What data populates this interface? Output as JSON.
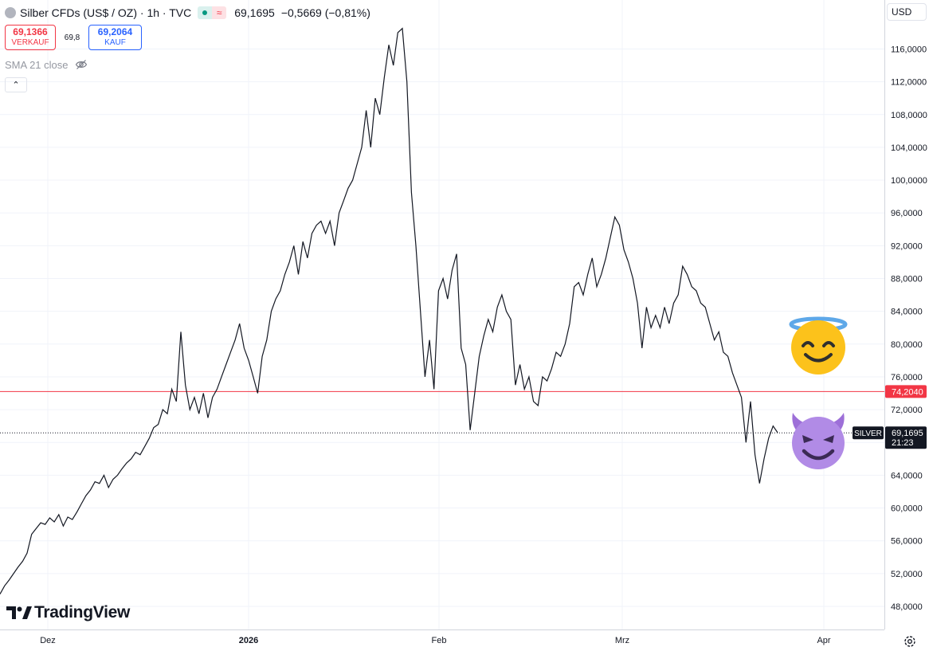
{
  "header": {
    "title": "Silber CFDs (US$ / OZ) · 1h · TVC",
    "status_icon_wave": "≈",
    "last_price": "69,1695",
    "change": "−0,5669 (−0,81%)",
    "sell_value": "69,1366",
    "sell_label": "VERKAUF",
    "spread": "69,8",
    "buy_value": "69,2064",
    "buy_label": "KAUF",
    "indicator": "SMA 21 close",
    "collapse_glyph": "⌃"
  },
  "currency": "USD",
  "branding": {
    "name": "TradingView"
  },
  "emojis": {
    "angel": "smiling-face-with-halo-icon",
    "devil": "smiling-face-with-horns-icon"
  },
  "colors": {
    "line": "#131722",
    "grid": "#f0f3fa",
    "hline": "#f23645",
    "angel_face": "#fcc21b",
    "devil_face": "#b18be6"
  },
  "chart_data": {
    "type": "line",
    "title": "",
    "xlabel": "",
    "ylabel": "",
    "x_ticks": [
      "Dez",
      "2026",
      "Feb",
      "Mrz",
      "Apr"
    ],
    "y_ticks": [
      "48,0000",
      "52,0000",
      "56,0000",
      "60,0000",
      "64,0000",
      "68,0000",
      "72,0000",
      "76,0000",
      "80,0000",
      "84,0000",
      "88,0000",
      "92,0000",
      "96,0000",
      "100,0000",
      "104,0000",
      "108,0000",
      "112,0000",
      "116,0000"
    ],
    "ylim": [
      46.5,
      120.5
    ],
    "horizontal_line": {
      "value": 74.204,
      "label": "74,2040"
    },
    "last_price_marker": {
      "value": 69.1695,
      "label": "69,1695",
      "symbol": "SILVER",
      "countdown": "21:23"
    },
    "series": [
      {
        "values": [
          49.5,
          50.5,
          51.2,
          52.0,
          52.8,
          53.5,
          54.5,
          56.8,
          57.5,
          58.2,
          58.0,
          58.8,
          58.3,
          59.2,
          57.8,
          58.9,
          58.6,
          59.5,
          60.5,
          61.5,
          62.2,
          63.2,
          63.0,
          64.0,
          62.5,
          63.5,
          64.0,
          64.8,
          65.5,
          66.0,
          66.8,
          66.5,
          67.5,
          68.5,
          69.8,
          70.2,
          72.0,
          71.5,
          74.5,
          73.0,
          81.5,
          75.0,
          72.0,
          73.5,
          71.5,
          74.0,
          71.0,
          73.5,
          74.5,
          76.0,
          77.5,
          79.0,
          80.5,
          82.5,
          79.5,
          78.0,
          76.0,
          74.0,
          78.5,
          80.5,
          84.0,
          85.5,
          86.5,
          88.5,
          90.0,
          92.0,
          88.5,
          92.5,
          90.5,
          93.5,
          94.5,
          95.0,
          93.5,
          95.0,
          92.0,
          96.0,
          97.5,
          99.0,
          100.0,
          102.0,
          104.0,
          108.5,
          104.0,
          110.0,
          108.0,
          112.5,
          116.5,
          114.0,
          118.0,
          118.5,
          112.0,
          98.5,
          92.0,
          84.0,
          76.0,
          80.5,
          74.5,
          86.5,
          88.0,
          85.5,
          89.0,
          91.0,
          79.5,
          77.5,
          69.5,
          74.0,
          78.5,
          81.0,
          83.0,
          81.5,
          84.5,
          86.0,
          84.0,
          83.0,
          75.0,
          77.5,
          74.5,
          76.0,
          73.0,
          72.5,
          76.0,
          75.5,
          77.0,
          79.0,
          78.5,
          80.0,
          82.5,
          87.0,
          87.5,
          86.0,
          88.5,
          90.5,
          87.0,
          88.5,
          90.5,
          93.0,
          95.5,
          94.5,
          91.5,
          90.0,
          88.0,
          85.0,
          79.5,
          84.5,
          82.0,
          83.5,
          82.0,
          84.5,
          82.5,
          85.0,
          86.0,
          89.5,
          88.5,
          87.0,
          86.5,
          85.0,
          84.5,
          82.5,
          80.5,
          81.5,
          79.0,
          78.5,
          76.5,
          75.0,
          73.5,
          68.0,
          73.0,
          66.5,
          63.0,
          66.0,
          68.5,
          70.0,
          69.2
        ]
      }
    ],
    "grid": true,
    "legend": "none"
  }
}
